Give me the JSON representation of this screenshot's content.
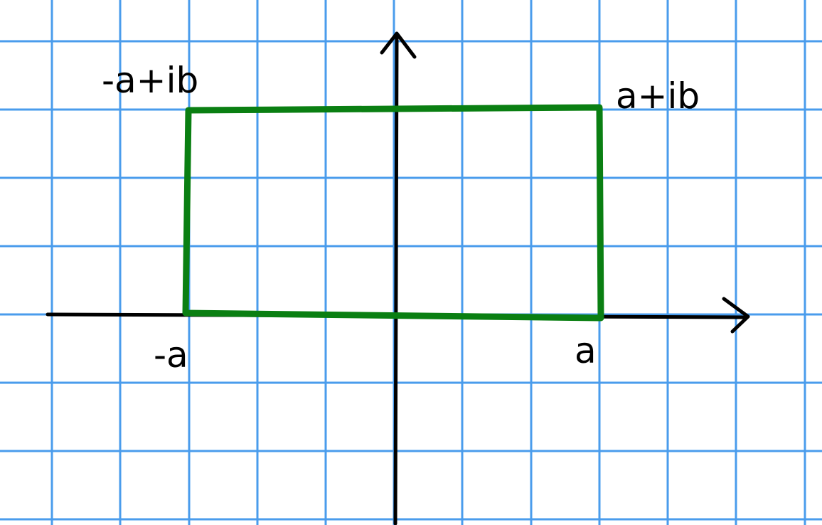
{
  "colors": {
    "background": "#ffffff",
    "grid": "#4a9cec",
    "axes": "#000000",
    "rectangle": "#0a7f12",
    "text": "#000000"
  },
  "labels": {
    "top_left_corner": "-a+ib",
    "top_right_corner": "a+ib",
    "left_x_intercept": "-a",
    "right_x_intercept": "a"
  }
}
